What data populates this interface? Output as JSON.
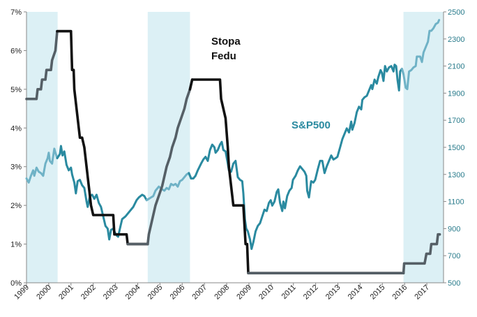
{
  "chart_data": {
    "type": "line",
    "title": "",
    "background": "#ffffff",
    "x_range": [
      1999.0,
      2017.75
    ],
    "x_ticks": [
      "1999",
      "2000",
      "2001",
      "2002",
      "2003",
      "2004",
      "2005",
      "2006",
      "2007",
      "2008",
      "2009",
      "2010",
      "2011",
      "2012",
      "2013",
      "2014",
      "2015",
      "2016",
      "2017"
    ],
    "y_left": {
      "range": [
        0,
        7
      ],
      "ticks": [
        "0%",
        "1%",
        "2%",
        "3%",
        "4%",
        "5%",
        "6%",
        "7%"
      ],
      "color": "#222222"
    },
    "y_right": {
      "range": [
        500,
        2500
      ],
      "ticks": [
        "500",
        "700",
        "900",
        "1100",
        "1300",
        "1500",
        "1700",
        "1900",
        "2100",
        "2300",
        "2500"
      ],
      "color": "#2a7c8c"
    },
    "shaded_periods": [
      {
        "start": 1999.0,
        "end": 2000.4
      },
      {
        "start": 2004.45,
        "end": 2006.35
      },
      {
        "start": 2015.95,
        "end": 2017.75
      }
    ],
    "shade_color": "#dcf0f5",
    "annotations": [
      {
        "name": "fed-rate-label",
        "lines": [
          "Stopa",
          "Fedu"
        ],
        "color": "#111111"
      },
      {
        "name": "sp500-label",
        "lines": [
          "S&P500"
        ],
        "color": "#2a8aa0"
      }
    ],
    "series": [
      {
        "name": "Stopa Fedu",
        "axis": "left",
        "color": "#111111",
        "shaded_color": "#555f66",
        "points": [
          [
            1999.0,
            4.75
          ],
          [
            1999.45,
            4.75
          ],
          [
            1999.5,
            5.0
          ],
          [
            1999.65,
            5.0
          ],
          [
            1999.7,
            5.25
          ],
          [
            1999.85,
            5.25
          ],
          [
            1999.9,
            5.5
          ],
          [
            2000.1,
            5.5
          ],
          [
            2000.15,
            5.75
          ],
          [
            2000.3,
            6.0
          ],
          [
            2000.38,
            6.5
          ],
          [
            2001.0,
            6.5
          ],
          [
            2001.05,
            5.5
          ],
          [
            2001.12,
            5.5
          ],
          [
            2001.15,
            5.0
          ],
          [
            2001.25,
            4.5
          ],
          [
            2001.35,
            4.0
          ],
          [
            2001.4,
            3.75
          ],
          [
            2001.5,
            3.75
          ],
          [
            2001.6,
            3.5
          ],
          [
            2001.7,
            3.0
          ],
          [
            2001.8,
            2.5
          ],
          [
            2001.9,
            2.0
          ],
          [
            2002.0,
            1.75
          ],
          [
            2002.9,
            1.75
          ],
          [
            2002.95,
            1.25
          ],
          [
            2003.5,
            1.25
          ],
          [
            2003.55,
            1.0
          ],
          [
            2004.45,
            1.0
          ],
          [
            2004.5,
            1.25
          ],
          [
            2004.6,
            1.5
          ],
          [
            2004.7,
            1.75
          ],
          [
            2004.8,
            2.0
          ],
          [
            2004.95,
            2.25
          ],
          [
            2005.1,
            2.5
          ],
          [
            2005.2,
            2.75
          ],
          [
            2005.3,
            3.0
          ],
          [
            2005.45,
            3.25
          ],
          [
            2005.55,
            3.5
          ],
          [
            2005.7,
            3.75
          ],
          [
            2005.8,
            4.0
          ],
          [
            2005.95,
            4.25
          ],
          [
            2006.1,
            4.5
          ],
          [
            2006.2,
            4.75
          ],
          [
            2006.35,
            5.0
          ],
          [
            2006.45,
            5.25
          ],
          [
            2007.7,
            5.25
          ],
          [
            2007.75,
            4.75
          ],
          [
            2007.85,
            4.5
          ],
          [
            2007.95,
            4.25
          ],
          [
            2008.05,
            3.5
          ],
          [
            2008.1,
            3.0
          ],
          [
            2008.25,
            2.25
          ],
          [
            2008.3,
            2.0
          ],
          [
            2008.75,
            2.0
          ],
          [
            2008.8,
            1.5
          ],
          [
            2008.85,
            1.0
          ],
          [
            2008.92,
            1.0
          ],
          [
            2008.97,
            0.25
          ],
          [
            2015.95,
            0.25
          ],
          [
            2015.98,
            0.5
          ],
          [
            2016.9,
            0.5
          ],
          [
            2016.98,
            0.75
          ],
          [
            2017.15,
            0.75
          ],
          [
            2017.2,
            1.0
          ],
          [
            2017.45,
            1.0
          ],
          [
            2017.5,
            1.25
          ],
          [
            2017.58,
            1.25
          ]
        ]
      },
      {
        "name": "S&P500",
        "axis": "right",
        "color": "#2a8aa0",
        "shaded_color": "#6fb2c6",
        "points": [
          [
            1999.0,
            1270
          ],
          [
            1999.1,
            1240
          ],
          [
            1999.2,
            1290
          ],
          [
            1999.3,
            1330
          ],
          [
            1999.35,
            1290
          ],
          [
            1999.45,
            1350
          ],
          [
            1999.55,
            1320
          ],
          [
            1999.65,
            1310
          ],
          [
            1999.75,
            1290
          ],
          [
            1999.85,
            1380
          ],
          [
            1999.95,
            1420
          ],
          [
            2000.0,
            1460
          ],
          [
            2000.05,
            1400
          ],
          [
            2000.15,
            1380
          ],
          [
            2000.25,
            1490
          ],
          [
            2000.3,
            1460
          ],
          [
            2000.38,
            1420
          ],
          [
            2000.5,
            1450
          ],
          [
            2000.55,
            1510
          ],
          [
            2000.62,
            1440
          ],
          [
            2000.7,
            1470
          ],
          [
            2000.8,
            1370
          ],
          [
            2000.9,
            1330
          ],
          [
            2001.0,
            1350
          ],
          [
            2001.05,
            1300
          ],
          [
            2001.15,
            1240
          ],
          [
            2001.22,
            1160
          ],
          [
            2001.3,
            1250
          ],
          [
            2001.4,
            1260
          ],
          [
            2001.5,
            1220
          ],
          [
            2001.6,
            1200
          ],
          [
            2001.7,
            1100
          ],
          [
            2001.75,
            1060
          ],
          [
            2001.85,
            1140
          ],
          [
            2001.95,
            1150
          ],
          [
            2002.05,
            1120
          ],
          [
            2002.15,
            1150
          ],
          [
            2002.25,
            1090
          ],
          [
            2002.35,
            1060
          ],
          [
            2002.45,
            990
          ],
          [
            2002.55,
            920
          ],
          [
            2002.65,
            900
          ],
          [
            2002.72,
            820
          ],
          [
            2002.8,
            890
          ],
          [
            2002.9,
            900
          ],
          [
            2002.98,
            870
          ],
          [
            2003.05,
            850
          ],
          [
            2003.12,
            840
          ],
          [
            2003.2,
            900
          ],
          [
            2003.3,
            970
          ],
          [
            2003.45,
            990
          ],
          [
            2003.55,
            1010
          ],
          [
            2003.65,
            1030
          ],
          [
            2003.8,
            1060
          ],
          [
            2003.95,
            1110
          ],
          [
            2004.05,
            1130
          ],
          [
            2004.2,
            1150
          ],
          [
            2004.3,
            1140
          ],
          [
            2004.4,
            1110
          ],
          [
            2004.5,
            1120
          ],
          [
            2004.6,
            1130
          ],
          [
            2004.7,
            1140
          ],
          [
            2004.8,
            1180
          ],
          [
            2004.95,
            1210
          ],
          [
            2005.1,
            1190
          ],
          [
            2005.2,
            1180
          ],
          [
            2005.3,
            1200
          ],
          [
            2005.4,
            1190
          ],
          [
            2005.5,
            1230
          ],
          [
            2005.6,
            1220
          ],
          [
            2005.7,
            1230
          ],
          [
            2005.8,
            1210
          ],
          [
            2005.9,
            1250
          ],
          [
            2006.0,
            1260
          ],
          [
            2006.1,
            1280
          ],
          [
            2006.2,
            1300
          ],
          [
            2006.3,
            1310
          ],
          [
            2006.4,
            1270
          ],
          [
            2006.5,
            1270
          ],
          [
            2006.6,
            1290
          ],
          [
            2006.7,
            1330
          ],
          [
            2006.85,
            1380
          ],
          [
            2006.95,
            1410
          ],
          [
            2007.05,
            1430
          ],
          [
            2007.15,
            1400
          ],
          [
            2007.25,
            1480
          ],
          [
            2007.35,
            1520
          ],
          [
            2007.45,
            1500
          ],
          [
            2007.5,
            1460
          ],
          [
            2007.6,
            1480
          ],
          [
            2007.7,
            1520
          ],
          [
            2007.78,
            1540
          ],
          [
            2007.85,
            1480
          ],
          [
            2007.95,
            1470
          ],
          [
            2008.05,
            1380
          ],
          [
            2008.1,
            1330
          ],
          [
            2008.2,
            1320
          ],
          [
            2008.3,
            1380
          ],
          [
            2008.4,
            1400
          ],
          [
            2008.5,
            1280
          ],
          [
            2008.6,
            1260
          ],
          [
            2008.7,
            1250
          ],
          [
            2008.75,
            1160
          ],
          [
            2008.82,
            970
          ],
          [
            2008.88,
            900
          ],
          [
            2008.95,
            880
          ],
          [
            2009.05,
            820
          ],
          [
            2009.12,
            750
          ],
          [
            2009.2,
            800
          ],
          [
            2009.3,
            880
          ],
          [
            2009.4,
            920
          ],
          [
            2009.5,
            940
          ],
          [
            2009.6,
            990
          ],
          [
            2009.7,
            1040
          ],
          [
            2009.8,
            1030
          ],
          [
            2009.9,
            1090
          ],
          [
            2009.98,
            1110
          ],
          [
            2010.05,
            1070
          ],
          [
            2010.15,
            1100
          ],
          [
            2010.25,
            1170
          ],
          [
            2010.32,
            1190
          ],
          [
            2010.4,
            1090
          ],
          [
            2010.5,
            1030
          ],
          [
            2010.55,
            1100
          ],
          [
            2010.62,
            1050
          ],
          [
            2010.72,
            1140
          ],
          [
            2010.82,
            1180
          ],
          [
            2010.92,
            1200
          ],
          [
            2010.98,
            1260
          ],
          [
            2011.1,
            1290
          ],
          [
            2011.2,
            1330
          ],
          [
            2011.3,
            1360
          ],
          [
            2011.4,
            1340
          ],
          [
            2011.5,
            1320
          ],
          [
            2011.58,
            1290
          ],
          [
            2011.62,
            1180
          ],
          [
            2011.7,
            1130
          ],
          [
            2011.8,
            1250
          ],
          [
            2011.9,
            1240
          ],
          [
            2011.98,
            1260
          ],
          [
            2012.1,
            1340
          ],
          [
            2012.2,
            1400
          ],
          [
            2012.3,
            1400
          ],
          [
            2012.4,
            1310
          ],
          [
            2012.5,
            1360
          ],
          [
            2012.6,
            1400
          ],
          [
            2012.7,
            1440
          ],
          [
            2012.8,
            1410
          ],
          [
            2012.9,
            1420
          ],
          [
            2012.98,
            1430
          ],
          [
            2013.1,
            1500
          ],
          [
            2013.2,
            1560
          ],
          [
            2013.3,
            1600
          ],
          [
            2013.4,
            1640
          ],
          [
            2013.5,
            1610
          ],
          [
            2013.6,
            1690
          ],
          [
            2013.65,
            1630
          ],
          [
            2013.75,
            1680
          ],
          [
            2013.85,
            1760
          ],
          [
            2013.95,
            1800
          ],
          [
            2014.05,
            1780
          ],
          [
            2014.1,
            1850
          ],
          [
            2014.2,
            1870
          ],
          [
            2014.3,
            1880
          ],
          [
            2014.4,
            1920
          ],
          [
            2014.5,
            1960
          ],
          [
            2014.55,
            1930
          ],
          [
            2014.65,
            2000
          ],
          [
            2014.75,
            1970
          ],
          [
            2014.82,
            2020
          ],
          [
            2014.92,
            2070
          ],
          [
            2014.98,
            2050
          ],
          [
            2015.05,
            1990
          ],
          [
            2015.12,
            2100
          ],
          [
            2015.2,
            2060
          ],
          [
            2015.3,
            2090
          ],
          [
            2015.4,
            2100
          ],
          [
            2015.5,
            2060
          ],
          [
            2015.55,
            2110
          ],
          [
            2015.62,
            2100
          ],
          [
            2015.68,
            2000
          ],
          [
            2015.75,
            1920
          ],
          [
            2015.8,
            2060
          ],
          [
            2015.88,
            2080
          ],
          [
            2015.95,
            2040
          ],
          [
            2016.05,
            1940
          ],
          [
            2016.12,
            1930
          ],
          [
            2016.2,
            2060
          ],
          [
            2016.3,
            2070
          ],
          [
            2016.4,
            2090
          ],
          [
            2016.5,
            2100
          ],
          [
            2016.55,
            2170
          ],
          [
            2016.62,
            2170
          ],
          [
            2016.7,
            2170
          ],
          [
            2016.78,
            2130
          ],
          [
            2016.85,
            2200
          ],
          [
            2016.95,
            2240
          ],
          [
            2017.05,
            2280
          ],
          [
            2017.12,
            2360
          ],
          [
            2017.2,
            2360
          ],
          [
            2017.3,
            2380
          ],
          [
            2017.4,
            2410
          ],
          [
            2017.5,
            2420
          ],
          [
            2017.55,
            2440
          ]
        ]
      }
    ]
  }
}
